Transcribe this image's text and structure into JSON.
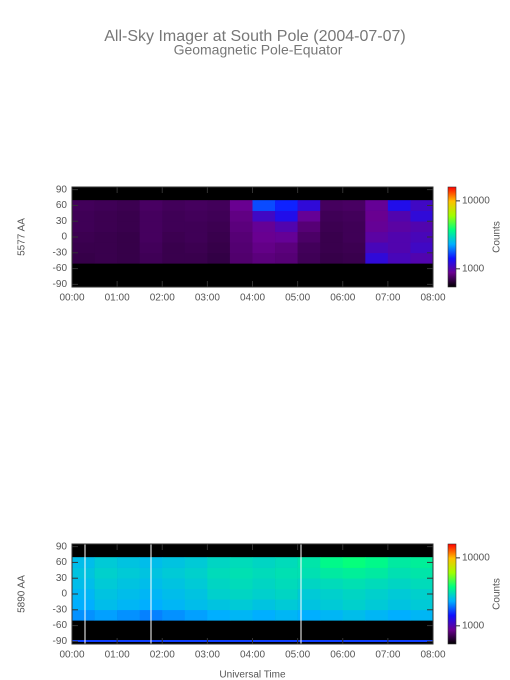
{
  "header": {
    "title": "All-Sky Imager at South Pole (2004-07-07)",
    "subtitle": "Geomagnetic Pole-Equator"
  },
  "chart_data": [
    {
      "type": "heatmap",
      "ylabel": "5577 AA",
      "colorbar_label": "Counts",
      "x_edges": [
        0,
        0.5,
        1,
        1.5,
        2,
        2.5,
        3,
        3.5,
        4,
        4.5,
        5,
        5.5,
        6,
        6.5,
        7,
        7.5,
        8
      ],
      "y_edges": [
        -90,
        -70,
        -50,
        -30,
        -10,
        10,
        30,
        50,
        70,
        90
      ],
      "z": [
        [
          null,
          null,
          null,
          null,
          null,
          null,
          null,
          null,
          null,
          null,
          null,
          null,
          null,
          null,
          null,
          null
        ],
        [
          null,
          null,
          null,
          null,
          null,
          null,
          null,
          null,
          null,
          null,
          null,
          null,
          null,
          null,
          null,
          null
        ],
        [
          690,
          700,
          690,
          720,
          700,
          700,
          680,
          780,
          820,
          800,
          720,
          690,
          700,
          1200,
          1050,
          1000
        ],
        [
          700,
          700,
          690,
          730,
          700,
          710,
          690,
          790,
          850,
          820,
          730,
          700,
          710,
          1050,
          1000,
          1100
        ],
        [
          710,
          700,
          690,
          740,
          710,
          720,
          700,
          800,
          880,
          900,
          760,
          700,
          720,
          950,
          1000,
          1050
        ],
        [
          720,
          710,
          700,
          740,
          720,
          720,
          710,
          820,
          900,
          1000,
          800,
          710,
          720,
          900,
          950,
          1000
        ],
        [
          720,
          710,
          700,
          740,
          720,
          730,
          720,
          840,
          1100,
          1300,
          900,
          720,
          730,
          880,
          1000,
          1200
        ],
        [
          730,
          720,
          710,
          750,
          730,
          740,
          730,
          880,
          1700,
          1500,
          1200,
          740,
          750,
          900,
          1300,
          1100
        ],
        [
          null,
          null,
          null,
          null,
          null,
          null,
          null,
          null,
          null,
          null,
          null,
          null,
          null,
          null,
          null,
          null
        ]
      ],
      "xlim": [
        0,
        8
      ],
      "xticks": [
        {
          "value": 0,
          "label": "00:00"
        },
        {
          "value": 1,
          "label": "01:00"
        },
        {
          "value": 2,
          "label": "02:00"
        },
        {
          "value": 3,
          "label": "03:00"
        },
        {
          "value": 4,
          "label": "04:00"
        },
        {
          "value": 5,
          "label": "05:00"
        },
        {
          "value": 6,
          "label": "06:00"
        },
        {
          "value": 7,
          "label": "07:00"
        },
        {
          "value": 8,
          "label": "08:00"
        }
      ],
      "ylim": [
        -95,
        95
      ],
      "yticks": [
        -90,
        -60,
        -30,
        0,
        30,
        60,
        90
      ],
      "zlim": [
        540,
        16000
      ],
      "zlog": true,
      "zticks": [
        1000,
        10000
      ],
      "colormap": [
        "#000000",
        "#6a0090",
        "#1010ff",
        "#00b0ff",
        "#00ff80",
        "#a0ff00",
        "#ffc000",
        "#ff0000"
      ]
    },
    {
      "type": "heatmap",
      "ylabel": "5890 AA",
      "colorbar_label": "Counts",
      "xlabel": "Universal Time",
      "x_edges": [
        0,
        0.5,
        1,
        1.5,
        2,
        2.5,
        3,
        3.5,
        4,
        4.5,
        5,
        5.5,
        6,
        6.5,
        7,
        7.5,
        8
      ],
      "y_edges": [
        -90,
        -70,
        -50,
        -30,
        -10,
        10,
        30,
        50,
        70,
        90
      ],
      "z": [
        [
          null,
          null,
          null,
          null,
          null,
          null,
          null,
          null,
          null,
          null,
          null,
          null,
          null,
          null,
          null,
          null
        ],
        [
          null,
          null,
          null,
          null,
          null,
          null,
          null,
          null,
          null,
          null,
          null,
          null,
          null,
          null,
          null,
          null
        ],
        [
          2100,
          2200,
          2100,
          2000,
          2100,
          2200,
          2300,
          2400,
          2300,
          2400,
          2300,
          2400,
          2500,
          2400,
          2300,
          2400
        ],
        [
          2300,
          2500,
          2400,
          2300,
          2400,
          2500,
          2600,
          2700,
          2600,
          2700,
          2600,
          2700,
          2800,
          2700,
          2600,
          2700
        ],
        [
          2400,
          2600,
          2500,
          2400,
          2500,
          2600,
          2800,
          2900,
          2800,
          2900,
          2700,
          2800,
          2900,
          2800,
          2700,
          2800
        ],
        [
          2500,
          2700,
          2600,
          2500,
          2600,
          2700,
          2900,
          3000,
          2900,
          3000,
          2900,
          3000,
          3100,
          3000,
          2900,
          3000
        ],
        [
          2600,
          2800,
          2700,
          2600,
          2700,
          2800,
          3000,
          3100,
          3000,
          3100,
          3100,
          3300,
          3400,
          3300,
          3100,
          3200
        ],
        [
          2500,
          2700,
          2600,
          2500,
          2600,
          2700,
          2900,
          3000,
          2900,
          3000,
          3200,
          3600,
          3800,
          3600,
          3300,
          3400
        ],
        [
          null,
          null,
          null,
          null,
          null,
          null,
          null,
          null,
          null,
          null,
          null,
          null,
          null,
          null,
          null,
          null
        ]
      ],
      "xlim": [
        0,
        8
      ],
      "xticks": [
        {
          "value": 0,
          "label": "00:00"
        },
        {
          "value": 1,
          "label": "01:00"
        },
        {
          "value": 2,
          "label": "02:00"
        },
        {
          "value": 3,
          "label": "03:00"
        },
        {
          "value": 4,
          "label": "04:00"
        },
        {
          "value": 5,
          "label": "05:00"
        },
        {
          "value": 6,
          "label": "06:00"
        },
        {
          "value": 7,
          "label": "07:00"
        },
        {
          "value": 8,
          "label": "08:00"
        }
      ],
      "ylim": [
        -95,
        95
      ],
      "yticks": [
        -90,
        -60,
        -30,
        0,
        30,
        60,
        90
      ],
      "zlim": [
        540,
        16000
      ],
      "zlog": true,
      "zticks": [
        1000,
        10000
      ],
      "colormap": [
        "#000000",
        "#6a0090",
        "#1010ff",
        "#00b0ff",
        "#00ff80",
        "#a0ff00",
        "#ffc000",
        "#ff0000"
      ]
    }
  ]
}
